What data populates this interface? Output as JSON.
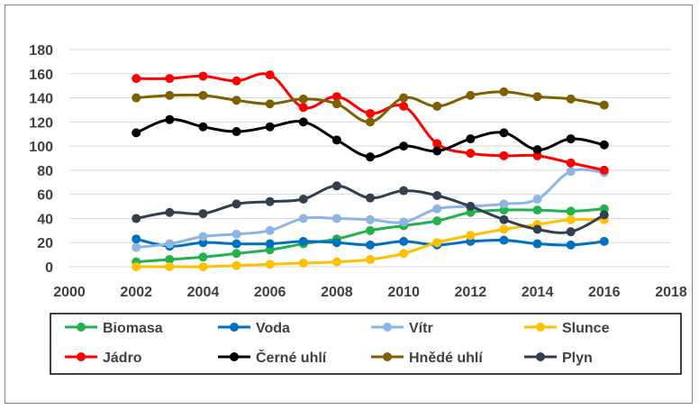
{
  "chart_data": {
    "type": "line",
    "title": "",
    "xlabel": "",
    "ylabel": "",
    "xlim": [
      2000,
      2018
    ],
    "ylim": [
      0,
      180
    ],
    "x_ticks": [
      "2000",
      "2002",
      "2004",
      "2006",
      "2008",
      "2010",
      "2012",
      "2014",
      "2016",
      "2018"
    ],
    "y_ticks": [
      "0",
      "20",
      "40",
      "60",
      "80",
      "100",
      "120",
      "140",
      "160",
      "180"
    ],
    "x": [
      2002,
      2003,
      2004,
      2005,
      2006,
      2007,
      2008,
      2009,
      2010,
      2011,
      2012,
      2013,
      2014,
      2015,
      2016
    ],
    "grid": "horizontal",
    "legend_position": "bottom",
    "series": [
      {
        "name": "Biomasa",
        "color": "#22b14c",
        "values": [
          4,
          6,
          8,
          11,
          14,
          19,
          23,
          30,
          34,
          38,
          45,
          47,
          47,
          46,
          48
        ]
      },
      {
        "name": "Voda",
        "color": "#0070c0",
        "values": [
          23,
          17,
          20,
          19,
          19,
          21,
          20,
          18,
          21,
          18,
          21,
          22,
          19,
          18,
          21
        ]
      },
      {
        "name": "Vítr",
        "color": "#8db4e2",
        "values": [
          16,
          19,
          25,
          27,
          30,
          40,
          40,
          39,
          37,
          48,
          50,
          52,
          56,
          79,
          78
        ]
      },
      {
        "name": "Slunce",
        "color": "#ffc000",
        "values": [
          0,
          0,
          0,
          1,
          2,
          3,
          4,
          6,
          11,
          20,
          26,
          31,
          35,
          39,
          39
        ]
      },
      {
        "name": "Jádro",
        "color": "#ff0000",
        "values": [
          156,
          156,
          158,
          154,
          159,
          132,
          141,
          127,
          133,
          102,
          94,
          92,
          92,
          86,
          80
        ]
      },
      {
        "name": "Černé uhlí",
        "color": "#000000",
        "values": [
          111,
          122,
          116,
          112,
          116,
          120,
          105,
          91,
          100,
          96,
          106,
          111,
          97,
          106,
          101
        ]
      },
      {
        "name": "Hnědé uhlí",
        "color": "#7f6000",
        "values": [
          140,
          142,
          142,
          138,
          135,
          139,
          135,
          120,
          140,
          133,
          142,
          145,
          141,
          139,
          134
        ]
      },
      {
        "name": "Plyn",
        "color": "#323f4f",
        "values": [
          40,
          45,
          44,
          52,
          54,
          56,
          67,
          57,
          63,
          59,
          50,
          39,
          31,
          29,
          43
        ]
      }
    ]
  }
}
